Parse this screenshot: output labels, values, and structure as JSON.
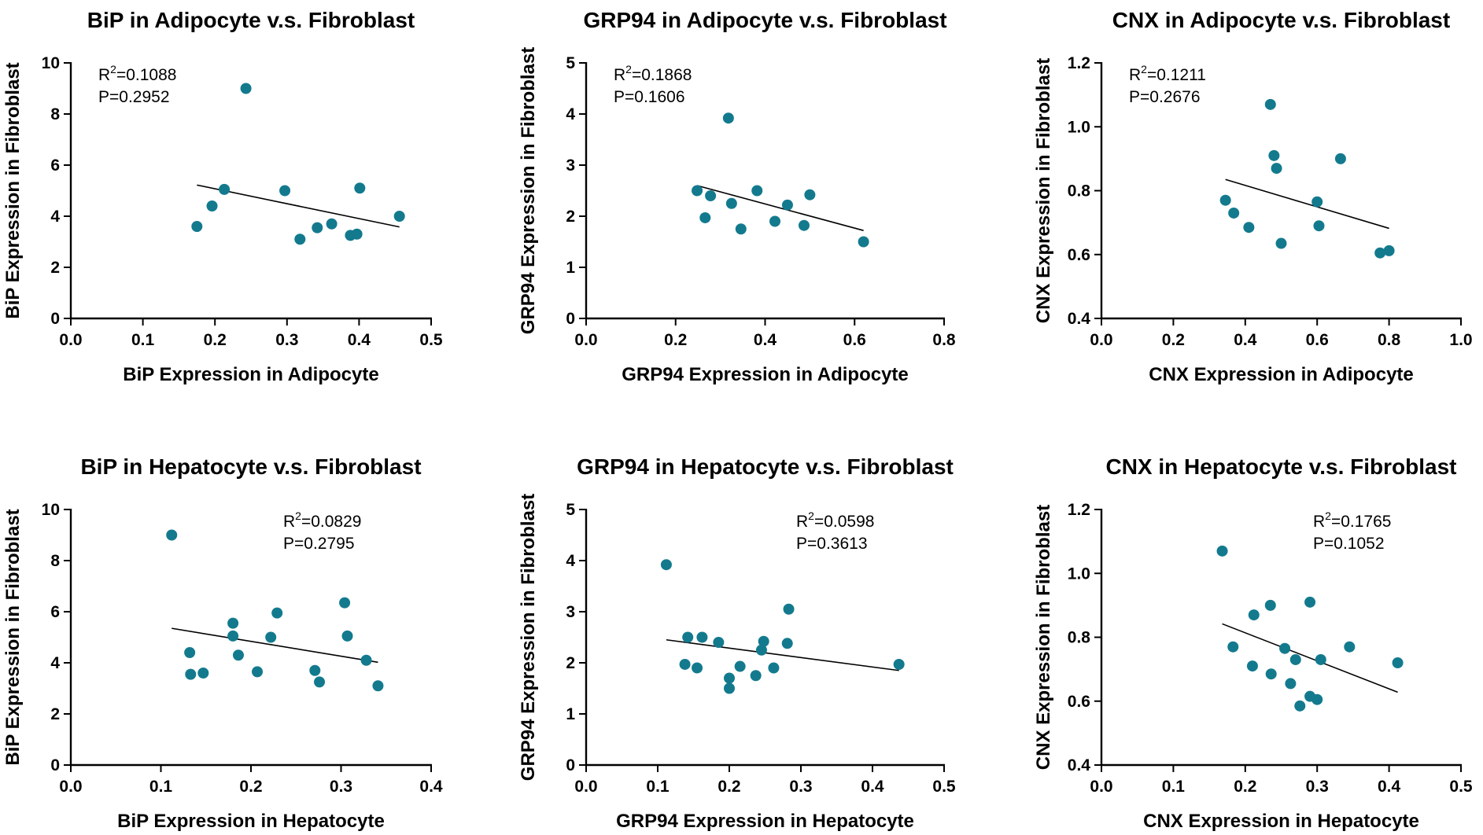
{
  "chart_data": [
    {
      "type": "scatter",
      "title": "BiP in Adipocyte v.s. Fibroblast",
      "xlabel": "BiP Expression in Adipocyte",
      "ylabel": "BiP Expression in Fibroblast",
      "xlim": [
        0,
        0.5
      ],
      "ylim": [
        0,
        10
      ],
      "xticks": [
        "0.0",
        "0.1",
        "0.2",
        "0.3",
        "0.4",
        "0.5"
      ],
      "yticks": [
        "0",
        "2",
        "4",
        "6",
        "8",
        "10"
      ],
      "stats": {
        "r2_prefix": "R",
        "r2_sup": "2",
        "r2_value": "=0.1088",
        "p": "P=0.2952"
      },
      "stats_position": "top-left",
      "point_color": "#137A8E",
      "points": [
        {
          "x": 0.175,
          "y": 3.6
        },
        {
          "x": 0.196,
          "y": 4.4
        },
        {
          "x": 0.213,
          "y": 5.05
        },
        {
          "x": 0.243,
          "y": 9.0
        },
        {
          "x": 0.297,
          "y": 5.0
        },
        {
          "x": 0.318,
          "y": 3.1
        },
        {
          "x": 0.342,
          "y": 3.55
        },
        {
          "x": 0.362,
          "y": 3.7
        },
        {
          "x": 0.388,
          "y": 3.25
        },
        {
          "x": 0.397,
          "y": 3.3
        },
        {
          "x": 0.401,
          "y": 5.1
        },
        {
          "x": 0.456,
          "y": 4.0
        }
      ],
      "fit": {
        "x": [
          0.175,
          0.456
        ],
        "y": [
          5.22,
          3.58
        ]
      }
    },
    {
      "type": "scatter",
      "title": "GRP94 in Adipocyte v.s. Fibroblast",
      "xlabel": "GRP94 Expression in Adipocyte",
      "ylabel": "GRP94 Expression in Fibroblast",
      "xlim": [
        0,
        0.8
      ],
      "ylim": [
        0,
        5
      ],
      "xticks": [
        "0.0",
        "0.2",
        "0.4",
        "0.6",
        "0.8"
      ],
      "yticks": [
        "0",
        "1",
        "2",
        "3",
        "4",
        "5"
      ],
      "stats": {
        "r2_prefix": "R",
        "r2_sup": "2",
        "r2_value": "=0.1868",
        "p": "P=0.1606"
      },
      "stats_position": "top-left",
      "point_color": "#137A8E",
      "points": [
        {
          "x": 0.248,
          "y": 2.5
        },
        {
          "x": 0.266,
          "y": 1.97
        },
        {
          "x": 0.278,
          "y": 2.4
        },
        {
          "x": 0.318,
          "y": 3.92
        },
        {
          "x": 0.325,
          "y": 2.25
        },
        {
          "x": 0.346,
          "y": 1.75
        },
        {
          "x": 0.382,
          "y": 2.5
        },
        {
          "x": 0.422,
          "y": 1.9
        },
        {
          "x": 0.45,
          "y": 2.22
        },
        {
          "x": 0.487,
          "y": 1.82
        },
        {
          "x": 0.5,
          "y": 2.42
        },
        {
          "x": 0.62,
          "y": 1.5
        }
      ],
      "fit": {
        "x": [
          0.248,
          0.62
        ],
        "y": [
          2.6,
          1.72
        ]
      }
    },
    {
      "type": "scatter",
      "title": "CNX in Adipocyte v.s. Fibroblast",
      "xlabel": "CNX Expression in Adipocyte",
      "ylabel": "CNX Expression in Fibroblast",
      "xlim": [
        0,
        1.0
      ],
      "ylim": [
        0.4,
        1.2
      ],
      "xticks": [
        "0.0",
        "0.2",
        "0.4",
        "0.6",
        "0.8",
        "1.0"
      ],
      "yticks": [
        "0.4",
        "0.6",
        "0.8",
        "1.0",
        "1.2"
      ],
      "stats": {
        "r2_prefix": "R",
        "r2_sup": "2",
        "r2_value": "=0.1211",
        "p": "P=0.2676"
      },
      "stats_position": "top-left",
      "point_color": "#137A8E",
      "points": [
        {
          "x": 0.345,
          "y": 0.77
        },
        {
          "x": 0.368,
          "y": 0.73
        },
        {
          "x": 0.41,
          "y": 0.685
        },
        {
          "x": 0.47,
          "y": 1.07
        },
        {
          "x": 0.48,
          "y": 0.91
        },
        {
          "x": 0.487,
          "y": 0.87
        },
        {
          "x": 0.5,
          "y": 0.635
        },
        {
          "x": 0.6,
          "y": 0.765
        },
        {
          "x": 0.605,
          "y": 0.69
        },
        {
          "x": 0.665,
          "y": 0.9
        },
        {
          "x": 0.775,
          "y": 0.605
        },
        {
          "x": 0.8,
          "y": 0.612
        }
      ],
      "fit": {
        "x": [
          0.345,
          0.8
        ],
        "y": [
          0.835,
          0.682
        ]
      }
    },
    {
      "type": "scatter",
      "title": "BiP in Hepatocyte v.s. Fibroblast",
      "xlabel": "BiP Expression in Hepatocyte",
      "ylabel": "BiP Expression in Fibroblast",
      "xlim": [
        0,
        0.4
      ],
      "ylim": [
        0,
        10
      ],
      "xticks": [
        "0.0",
        "0.1",
        "0.2",
        "0.3",
        "0.4"
      ],
      "yticks": [
        "0",
        "2",
        "4",
        "6",
        "8",
        "10"
      ],
      "stats": {
        "r2_prefix": "R",
        "r2_sup": "2",
        "r2_value": "=0.0829",
        "p": "P=0.2795"
      },
      "stats_position": "top-right",
      "point_color": "#137A8E",
      "points": [
        {
          "x": 0.112,
          "y": 9.0
        },
        {
          "x": 0.132,
          "y": 4.4
        },
        {
          "x": 0.133,
          "y": 3.55
        },
        {
          "x": 0.147,
          "y": 3.6
        },
        {
          "x": 0.18,
          "y": 5.55
        },
        {
          "x": 0.18,
          "y": 5.05
        },
        {
          "x": 0.186,
          "y": 4.3
        },
        {
          "x": 0.207,
          "y": 3.65
        },
        {
          "x": 0.222,
          "y": 5.0
        },
        {
          "x": 0.229,
          "y": 5.95
        },
        {
          "x": 0.271,
          "y": 3.7
        },
        {
          "x": 0.276,
          "y": 3.25
        },
        {
          "x": 0.304,
          "y": 6.35
        },
        {
          "x": 0.307,
          "y": 5.05
        },
        {
          "x": 0.328,
          "y": 4.1
        },
        {
          "x": 0.341,
          "y": 3.1
        }
      ],
      "fit": {
        "x": [
          0.112,
          0.341
        ],
        "y": [
          5.35,
          4.02
        ]
      }
    },
    {
      "type": "scatter",
      "title": "GRP94 in Hepatocyte v.s. Fibroblast",
      "xlabel": "GRP94 Expression in Hepatocyte",
      "ylabel": "GRP94 Expression in Fibroblast",
      "xlim": [
        0,
        0.5
      ],
      "ylim": [
        0,
        5
      ],
      "xticks": [
        "0.0",
        "0.1",
        "0.2",
        "0.3",
        "0.4",
        "0.5"
      ],
      "yticks": [
        "0",
        "1",
        "2",
        "3",
        "4",
        "5"
      ],
      "stats": {
        "r2_prefix": "R",
        "r2_sup": "2",
        "r2_value": "=0.0598",
        "p": "P=0.3613"
      },
      "stats_position": "top-right",
      "point_color": "#137A8E",
      "points": [
        {
          "x": 0.112,
          "y": 3.92
        },
        {
          "x": 0.138,
          "y": 1.97
        },
        {
          "x": 0.142,
          "y": 2.5
        },
        {
          "x": 0.155,
          "y": 1.9
        },
        {
          "x": 0.162,
          "y": 2.5
        },
        {
          "x": 0.185,
          "y": 2.4
        },
        {
          "x": 0.2,
          "y": 1.7
        },
        {
          "x": 0.2,
          "y": 1.5
        },
        {
          "x": 0.215,
          "y": 1.93
        },
        {
          "x": 0.237,
          "y": 1.75
        },
        {
          "x": 0.245,
          "y": 2.25
        },
        {
          "x": 0.248,
          "y": 2.42
        },
        {
          "x": 0.262,
          "y": 1.9
        },
        {
          "x": 0.281,
          "y": 2.38
        },
        {
          "x": 0.283,
          "y": 3.05
        },
        {
          "x": 0.437,
          "y": 1.97
        }
      ],
      "fit": {
        "x": [
          0.112,
          0.437
        ],
        "y": [
          2.45,
          1.85
        ]
      }
    },
    {
      "type": "scatter",
      "title": "CNX in Hepatocyte v.s. Fibroblast",
      "xlabel": "CNX Expression in Hepatocyte",
      "ylabel": "CNX Expression in Fibroblast",
      "xlim": [
        0,
        0.5
      ],
      "ylim": [
        0.4,
        1.2
      ],
      "xticks": [
        "0.0",
        "0.1",
        "0.2",
        "0.3",
        "0.4",
        "0.5"
      ],
      "yticks": [
        "0.4",
        "0.6",
        "0.8",
        "1.0",
        "1.2"
      ],
      "stats": {
        "r2_prefix": "R",
        "r2_sup": "2",
        "r2_value": "=0.1765",
        "p": "P=0.1052"
      },
      "stats_position": "top-right",
      "point_color": "#137A8E",
      "points": [
        {
          "x": 0.168,
          "y": 1.07
        },
        {
          "x": 0.183,
          "y": 0.77
        },
        {
          "x": 0.21,
          "y": 0.71
        },
        {
          "x": 0.212,
          "y": 0.87
        },
        {
          "x": 0.235,
          "y": 0.9
        },
        {
          "x": 0.236,
          "y": 0.685
        },
        {
          "x": 0.255,
          "y": 0.765
        },
        {
          "x": 0.263,
          "y": 0.655
        },
        {
          "x": 0.27,
          "y": 0.73
        },
        {
          "x": 0.276,
          "y": 0.585
        },
        {
          "x": 0.29,
          "y": 0.91
        },
        {
          "x": 0.29,
          "y": 0.615
        },
        {
          "x": 0.3,
          "y": 0.605
        },
        {
          "x": 0.305,
          "y": 0.73
        },
        {
          "x": 0.345,
          "y": 0.77
        },
        {
          "x": 0.412,
          "y": 0.72
        }
      ],
      "fit": {
        "x": [
          0.168,
          0.412
        ],
        "y": [
          0.842,
          0.628
        ]
      }
    }
  ]
}
